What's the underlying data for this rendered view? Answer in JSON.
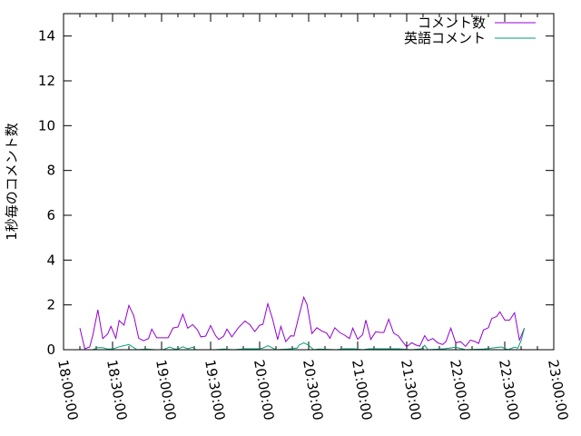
{
  "chart_data": {
    "type": "line",
    "title": "",
    "xlabel": "",
    "ylabel": "1秒毎のコメント数",
    "xlim": [
      "18:00:00",
      "23:00:00"
    ],
    "ylim": [
      0,
      15
    ],
    "xticks": [
      "18:00:00",
      "18:30:00",
      "19:00:00",
      "19:30:00",
      "20:00:00",
      "20:30:00",
      "21:00:00",
      "21:30:00",
      "22:00:00",
      "22:30:00",
      "23:00:00"
    ],
    "yticks": [
      "0",
      "2",
      "4",
      "6",
      "8",
      "10",
      "12",
      "14"
    ],
    "grid": false,
    "legend": "top-right",
    "series": [
      {
        "name": "コメント数",
        "color": "#9400d3",
        "points": [
          [
            "18:10",
            0.97
          ],
          [
            "18:13",
            0.04
          ],
          [
            "18:16",
            0.12
          ],
          [
            "18:18",
            0.67
          ],
          [
            "18:21",
            1.78
          ],
          [
            "18:24",
            0.5
          ],
          [
            "18:27",
            0.7
          ],
          [
            "18:29",
            1.04
          ],
          [
            "18:32",
            0.51
          ],
          [
            "18:34",
            1.3
          ],
          [
            "18:37",
            1.1
          ],
          [
            "18:40",
            1.98
          ],
          [
            "18:43",
            1.51
          ],
          [
            "18:46",
            0.51
          ],
          [
            "18:49",
            0.4
          ],
          [
            "18:52",
            0.5
          ],
          [
            "18:54",
            0.92
          ],
          [
            "18:57",
            0.53
          ],
          [
            "19:00",
            0.53
          ],
          [
            "19:04",
            0.53
          ],
          [
            "19:07",
            0.97
          ],
          [
            "19:10",
            1.01
          ],
          [
            "19:13",
            1.58
          ],
          [
            "19:16",
            0.96
          ],
          [
            "19:19",
            1.12
          ],
          [
            "19:22",
            0.88
          ],
          [
            "19:24",
            0.57
          ],
          [
            "19:27",
            0.61
          ],
          [
            "19:30",
            1.08
          ],
          [
            "19:33",
            0.63
          ],
          [
            "19:35",
            0.46
          ],
          [
            "19:38",
            0.61
          ],
          [
            "19:40",
            0.92
          ],
          [
            "19:43",
            0.57
          ],
          [
            "19:45",
            0.78
          ],
          [
            "19:47",
            0.98
          ],
          [
            "19:51",
            1.28
          ],
          [
            "19:54",
            1.12
          ],
          [
            "19:57",
            0.81
          ],
          [
            "20:00",
            1.09
          ],
          [
            "20:02",
            1.13
          ],
          [
            "20:05",
            2.05
          ],
          [
            "20:08",
            1.35
          ],
          [
            "20:11",
            0.45
          ],
          [
            "20:13",
            1.04
          ],
          [
            "20:16",
            0.36
          ],
          [
            "20:19",
            0.62
          ],
          [
            "20:21",
            0.61
          ],
          [
            "20:24",
            1.5
          ],
          [
            "20:27",
            2.34
          ],
          [
            "20:29",
            2.02
          ],
          [
            "20:32",
            0.72
          ],
          [
            "20:35",
            0.98
          ],
          [
            "20:38",
            0.84
          ],
          [
            "20:41",
            0.74
          ],
          [
            "20:43",
            0.51
          ],
          [
            "20:46",
            0.98
          ],
          [
            "20:49",
            0.77
          ],
          [
            "20:52",
            0.65
          ],
          [
            "20:55",
            0.5
          ],
          [
            "20:57",
            0.96
          ],
          [
            "21:00",
            0.47
          ],
          [
            "21:03",
            0.67
          ],
          [
            "21:05",
            1.32
          ],
          [
            "21:08",
            0.46
          ],
          [
            "21:11",
            0.8
          ],
          [
            "21:14",
            0.77
          ],
          [
            "21:16",
            0.77
          ],
          [
            "21:19",
            1.36
          ],
          [
            "21:22",
            0.74
          ],
          [
            "21:25",
            0.61
          ],
          [
            "21:27",
            0.4
          ],
          [
            "21:30",
            0.13
          ],
          [
            "21:33",
            0.31
          ],
          [
            "21:36",
            0.2
          ],
          [
            "21:38",
            0.16
          ],
          [
            "21:41",
            0.63
          ],
          [
            "21:43",
            0.4
          ],
          [
            "21:46",
            0.5
          ],
          [
            "21:49",
            0.31
          ],
          [
            "21:52",
            0.23
          ],
          [
            "21:54",
            0.36
          ],
          [
            "21:57",
            0.96
          ],
          [
            "22:00",
            0.31
          ],
          [
            "22:03",
            0.36
          ],
          [
            "22:06",
            0.15
          ],
          [
            "22:09",
            0.43
          ],
          [
            "22:12",
            0.36
          ],
          [
            "22:14",
            0.28
          ],
          [
            "22:17",
            0.88
          ],
          [
            "22:20",
            0.98
          ],
          [
            "22:22",
            1.39
          ],
          [
            "22:25",
            1.48
          ],
          [
            "22:27",
            1.69
          ],
          [
            "22:30",
            1.32
          ],
          [
            "22:33",
            1.32
          ],
          [
            "22:36",
            1.65
          ],
          [
            "22:39",
            0.43
          ],
          [
            "22:42",
            0.96
          ]
        ]
      },
      {
        "name": "英語コメント",
        "color": "#009e73",
        "points": [
          [
            "18:13",
            0
          ],
          [
            "18:18",
            0
          ],
          [
            "18:21",
            0.09
          ],
          [
            "18:24",
            0.09
          ],
          [
            "18:27",
            0.03
          ],
          [
            "18:30",
            0.03
          ],
          [
            "18:34",
            0.13
          ],
          [
            "18:40",
            0.23
          ],
          [
            "18:45",
            0
          ],
          [
            "18:51",
            0.03
          ],
          [
            "18:56",
            0
          ],
          [
            "19:01",
            0
          ],
          [
            "19:05",
            0.12
          ],
          [
            "19:08",
            0.03
          ],
          [
            "19:10",
            0.03
          ],
          [
            "19:13",
            0.13
          ],
          [
            "19:16",
            0.04
          ],
          [
            "19:19",
            0.11
          ],
          [
            "19:21",
            0
          ],
          [
            "19:33",
            0
          ],
          [
            "19:38",
            0.03
          ],
          [
            "19:44",
            0
          ],
          [
            "19:51",
            0.04
          ],
          [
            "19:59",
            0.04
          ],
          [
            "20:02",
            0.07
          ],
          [
            "20:05",
            0.18
          ],
          [
            "20:10",
            0
          ],
          [
            "20:17",
            0.03
          ],
          [
            "20:23",
            0.07
          ],
          [
            "20:24",
            0.2
          ],
          [
            "20:27",
            0.31
          ],
          [
            "20:30",
            0.2
          ],
          [
            "20:33",
            0
          ],
          [
            "20:36",
            0.03
          ],
          [
            "20:47",
            0
          ],
          [
            "20:51",
            0.04
          ],
          [
            "20:58",
            0.04
          ],
          [
            "21:03",
            0
          ],
          [
            "21:07",
            0.04
          ],
          [
            "21:18",
            0.04
          ],
          [
            "21:25",
            0.04
          ],
          [
            "21:33",
            0
          ],
          [
            "21:39",
            0.04
          ],
          [
            "21:41",
            0.2
          ],
          [
            "21:43",
            0
          ],
          [
            "21:53",
            0.04
          ],
          [
            "22:00",
            0.11
          ],
          [
            "22:06",
            0
          ],
          [
            "22:17",
            0.03
          ],
          [
            "22:28",
            0.12
          ],
          [
            "22:32",
            0
          ],
          [
            "22:36",
            0.11
          ],
          [
            "22:38",
            0.07
          ],
          [
            "22:40",
            0.4
          ],
          [
            "22:42",
            0.96
          ]
        ]
      }
    ]
  }
}
